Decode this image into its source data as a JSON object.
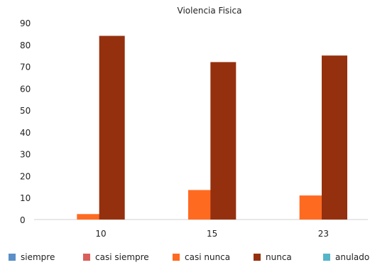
{
  "chart_data": {
    "type": "bar",
    "title": "Violencia Fisica",
    "xlabel": "",
    "ylabel": "",
    "ylim": [
      0,
      90
    ],
    "yticks": [
      0,
      10,
      20,
      30,
      40,
      50,
      60,
      70,
      80,
      90
    ],
    "grid": false,
    "legend_position": "bottom",
    "categories": [
      "10",
      "15",
      "23"
    ],
    "series": [
      {
        "name": "siempre",
        "color": "#5b8fc7",
        "values": [
          0,
          0,
          0
        ]
      },
      {
        "name": "casi siempre",
        "color": "#d9605b",
        "values": [
          0,
          0,
          0
        ]
      },
      {
        "name": "casi nunca",
        "color": "#ff6a21",
        "values": [
          2.5,
          13.5,
          11
        ]
      },
      {
        "name": "nunca",
        "color": "#95300e",
        "values": [
          84,
          72,
          75
        ]
      },
      {
        "name": "anulado",
        "color": "#56b5c9",
        "values": [
          0,
          0,
          0
        ]
      }
    ]
  }
}
